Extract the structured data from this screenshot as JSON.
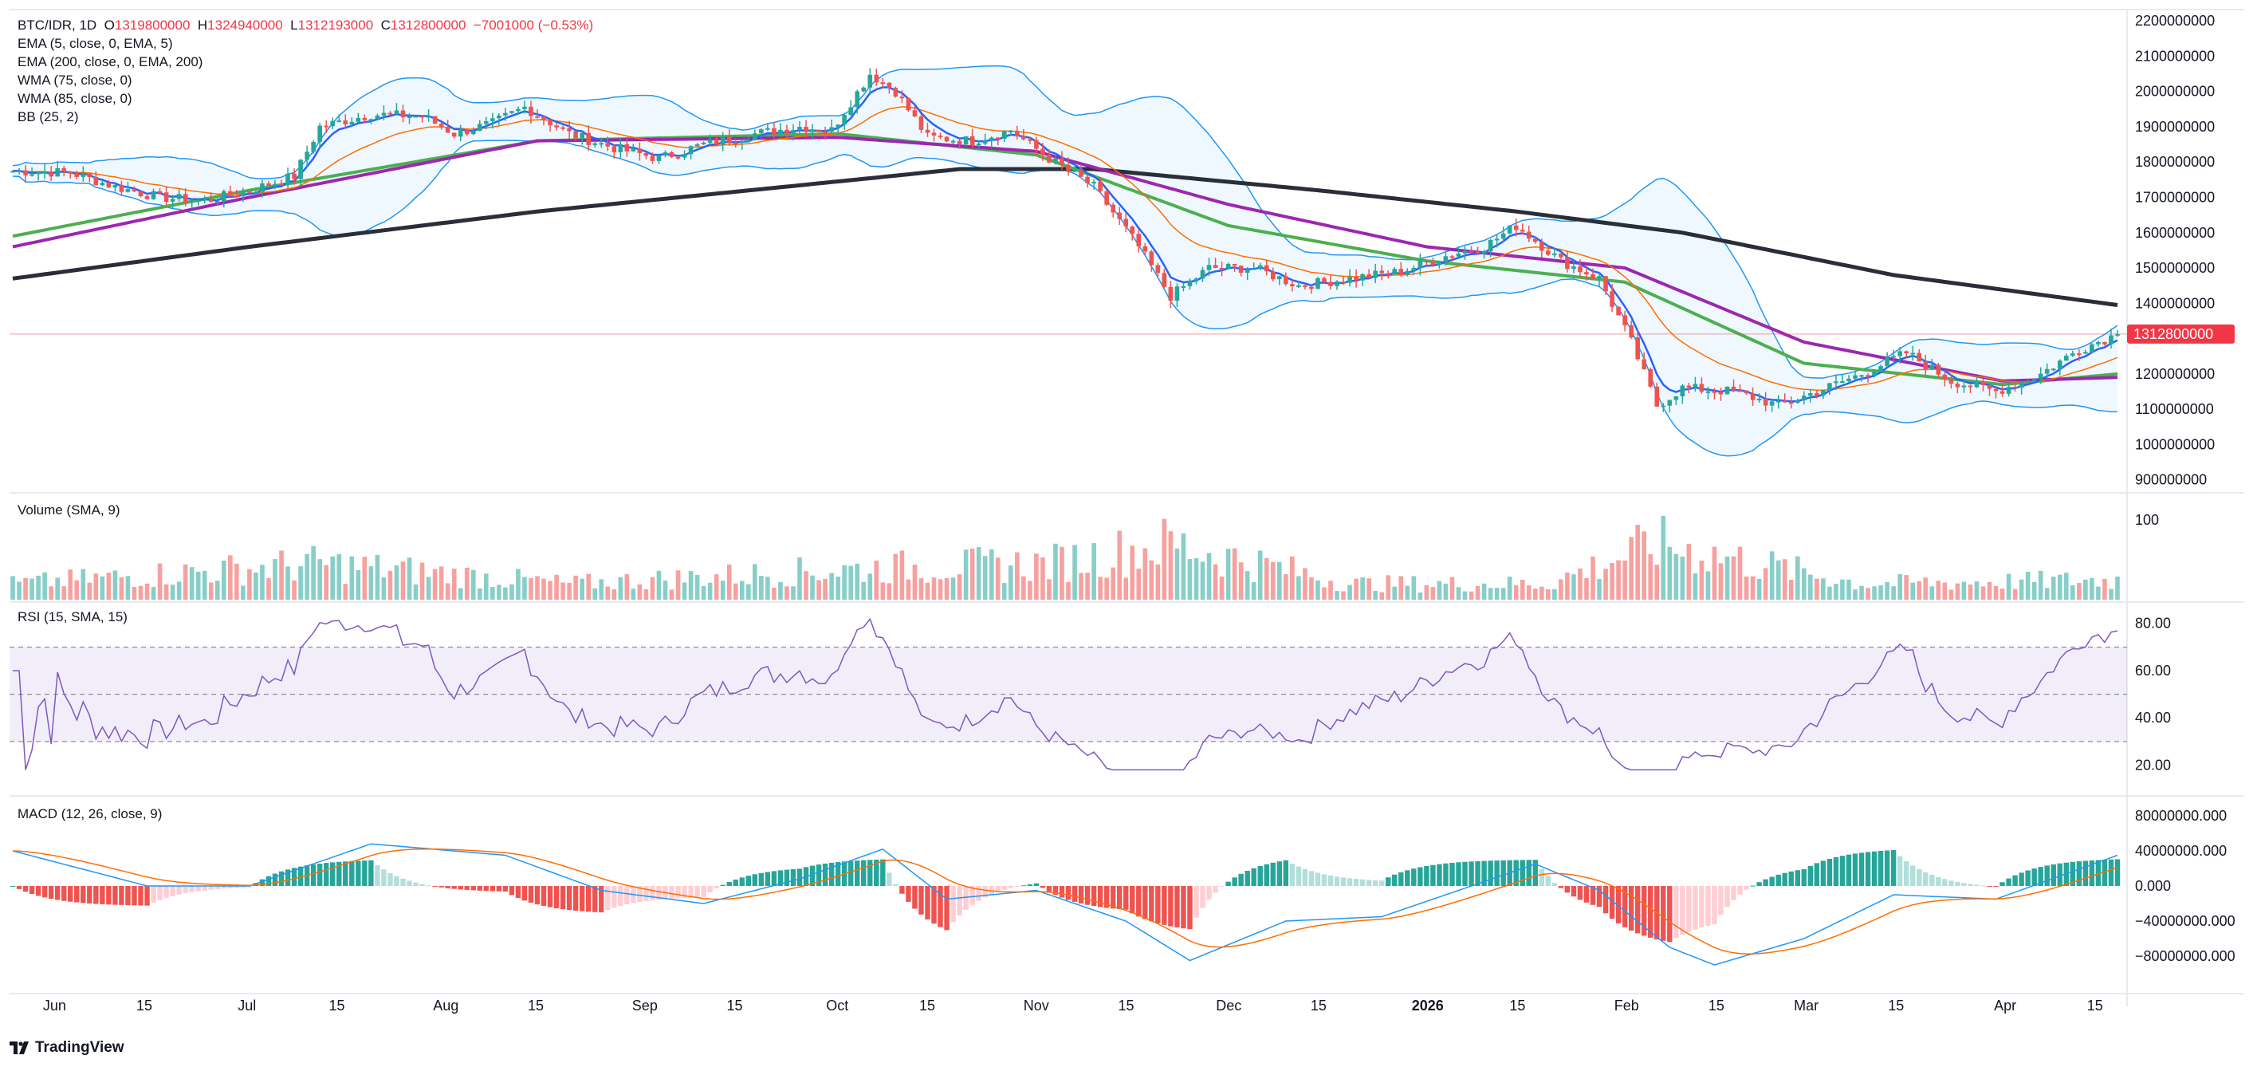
{
  "header": {
    "symbol": "BTC/IDR",
    "interval": "1D",
    "open_label": "O",
    "open": "1319800000",
    "high_label": "H",
    "high": "1324940000",
    "low_label": "L",
    "low": "1312193000",
    "close_label": "C",
    "close": "1312800000",
    "change": "−7001000 (−0.53%)"
  },
  "indicators": [
    "EMA (5, close, 0, EMA, 5)",
    "EMA (200, close, 0, EMA, 200)",
    "WMA (75, close, 0)",
    "WMA (85, close, 0)",
    "BB (25, 2)"
  ],
  "panes": {
    "volume_title": "Volume (SMA, 9)",
    "rsi_title": "RSI (15, SMA, 15)",
    "macd_title": "MACD (12, 26, close, 9)"
  },
  "price_axis": [
    "2200000000",
    "2100000000",
    "2000000000",
    "1900000000",
    "1800000000",
    "1700000000",
    "1600000000",
    "1500000000",
    "1400000000",
    "1200000000",
    "1100000000",
    "1000000000",
    "900000000"
  ],
  "last_price_tag": "1312800000",
  "volume_axis": [
    "100"
  ],
  "rsi_axis": [
    "80.00",
    "60.00",
    "40.00",
    "20.00"
  ],
  "macd_axis": [
    "80000000.000",
    "40000000.000",
    "0.000",
    "−40000000.000",
    "−80000000.000"
  ],
  "time_axis": [
    "Jun",
    "15",
    "Jul",
    "15",
    "Aug",
    "15",
    "Sep",
    "15",
    "Oct",
    "15",
    "Nov",
    "15",
    "Dec",
    "15",
    "2026",
    "15",
    "Feb",
    "15",
    "Mar",
    "15",
    "Apr",
    "15"
  ],
  "brand": "TradingView",
  "colors": {
    "up": "#26a69a",
    "down": "#ef5350",
    "ema5": "#2962ff",
    "ema200": "#2a2e39",
    "wma75": "#4caf50",
    "wma85": "#9c27b0",
    "bb": "#2196f3",
    "rsi": "#7e57c2",
    "macd": "#2196f3",
    "signal": "#ff6d00",
    "last_price": "#f23645"
  },
  "chart_data": {
    "type": "candlestick",
    "x_range": [
      "2025-05-25",
      "2026-04-19"
    ],
    "price_keypoints": [
      [
        "2025-05-25",
        1775
      ],
      [
        "2025-06-03",
        1770
      ],
      [
        "2025-06-10",
        1730
      ],
      [
        "2025-06-17",
        1700
      ],
      [
        "2025-06-24",
        1690
      ],
      [
        "2025-07-01",
        1720
      ],
      [
        "2025-07-08",
        1760
      ],
      [
        "2025-07-12",
        1900
      ],
      [
        "2025-07-20",
        1935
      ],
      [
        "2025-07-28",
        1930
      ],
      [
        "2025-08-02",
        1880
      ],
      [
        "2025-08-08",
        1910
      ],
      [
        "2025-08-13",
        1955
      ],
      [
        "2025-08-20",
        1880
      ],
      [
        "2025-08-27",
        1840
      ],
      [
        "2025-09-03",
        1810
      ],
      [
        "2025-09-10",
        1850
      ],
      [
        "2025-09-18",
        1880
      ],
      [
        "2025-09-25",
        1900
      ],
      [
        "2025-09-30",
        1890
      ],
      [
        "2025-10-06",
        2050
      ],
      [
        "2025-10-10",
        2000
      ],
      [
        "2025-10-15",
        1870
      ],
      [
        "2025-10-22",
        1860
      ],
      [
        "2025-10-28",
        1890
      ],
      [
        "2025-11-03",
        1810
      ],
      [
        "2025-11-10",
        1730
      ],
      [
        "2025-11-17",
        1560
      ],
      [
        "2025-11-22",
        1420
      ],
      [
        "2025-11-28",
        1500
      ],
      [
        "2025-12-05",
        1500
      ],
      [
        "2025-12-12",
        1450
      ],
      [
        "2025-12-20",
        1470
      ],
      [
        "2025-12-28",
        1490
      ],
      [
        "2026-01-05",
        1540
      ],
      [
        "2026-01-10",
        1560
      ],
      [
        "2026-01-15",
        1620
      ],
      [
        "2026-01-22",
        1520
      ],
      [
        "2026-01-28",
        1470
      ],
      [
        "2026-02-02",
        1290
      ],
      [
        "2026-02-06",
        1110
      ],
      [
        "2026-02-10",
        1160
      ],
      [
        "2026-02-18",
        1150
      ],
      [
        "2026-02-25",
        1110
      ],
      [
        "2026-03-03",
        1150
      ],
      [
        "2026-03-10",
        1200
      ],
      [
        "2026-03-17",
        1260
      ],
      [
        "2026-03-24",
        1180
      ],
      [
        "2026-03-31",
        1150
      ],
      [
        "2026-04-07",
        1200
      ],
      [
        "2026-04-13",
        1270
      ],
      [
        "2026-04-19",
        1312.8
      ]
    ],
    "price_unit": "millions IDR",
    "ema200_keypoints": [
      [
        "2025-05-25",
        1470
      ],
      [
        "2025-07-01",
        1560
      ],
      [
        "2025-08-15",
        1660
      ],
      [
        "2025-10-01",
        1745
      ],
      [
        "2025-10-20",
        1780
      ],
      [
        "2025-11-10",
        1780
      ],
      [
        "2025-12-15",
        1720
      ],
      [
        "2026-01-15",
        1660
      ],
      [
        "2026-02-10",
        1600
      ],
      [
        "2026-03-15",
        1480
      ],
      [
        "2026-04-19",
        1395
      ]
    ],
    "wma75_keypoints": [
      [
        "2025-05-25",
        1590
      ],
      [
        "2025-07-01",
        1720
      ],
      [
        "2025-08-15",
        1860
      ],
      [
        "2025-10-01",
        1880
      ],
      [
        "2025-11-01",
        1820
      ],
      [
        "2025-12-01",
        1620
      ],
      [
        "2026-01-01",
        1520
      ],
      [
        "2026-02-01",
        1460
      ],
      [
        "2026-03-01",
        1230
      ],
      [
        "2026-04-01",
        1170
      ],
      [
        "2026-04-19",
        1200
      ]
    ],
    "wma85_keypoints": [
      [
        "2025-05-25",
        1560
      ],
      [
        "2025-07-01",
        1700
      ],
      [
        "2025-08-15",
        1860
      ],
      [
        "2025-10-01",
        1870
      ],
      [
        "2025-11-01",
        1830
      ],
      [
        "2025-12-01",
        1680
      ],
      [
        "2026-01-01",
        1560
      ],
      [
        "2026-02-01",
        1500
      ],
      [
        "2026-03-01",
        1290
      ],
      [
        "2026-04-01",
        1180
      ],
      [
        "2026-04-19",
        1190
      ]
    ],
    "volume_keypoints": [
      [
        "2025-05-25",
        20
      ],
      [
        "2025-07-12",
        45
      ],
      [
        "2025-08-20",
        20
      ],
      [
        "2025-10-08",
        40
      ],
      [
        "2025-11-03",
        45
      ],
      [
        "2025-11-22",
        70
      ],
      [
        "2025-12-20",
        20
      ],
      [
        "2026-01-20",
        20
      ],
      [
        "2026-02-06",
        70
      ],
      [
        "2026-03-10",
        20
      ],
      [
        "2026-04-19",
        25
      ]
    ],
    "rsi_range": [
      20,
      80
    ],
    "rsi_levels": [
      30,
      50,
      70
    ],
    "macd_keypoints": [
      [
        "2025-05-25",
        40
      ],
      [
        "2025-06-15",
        0
      ],
      [
        "2025-07-01",
        0
      ],
      [
        "2025-07-20",
        48
      ],
      [
        "2025-08-10",
        35
      ],
      [
        "2025-08-25",
        -5
      ],
      [
        "2025-09-10",
        -20
      ],
      [
        "2025-09-25",
        8
      ],
      [
        "2025-10-08",
        42
      ],
      [
        "2025-10-18",
        -15
      ],
      [
        "2025-11-01",
        -5
      ],
      [
        "2025-11-15",
        -40
      ],
      [
        "2025-11-25",
        -85
      ],
      [
        "2025-12-10",
        -40
      ],
      [
        "2025-12-25",
        -35
      ],
      [
        "2026-01-10",
        5
      ],
      [
        "2026-01-18",
        25
      ],
      [
        "2026-01-28",
        -5
      ],
      [
        "2026-02-08",
        -70
      ],
      [
        "2026-02-15",
        -90
      ],
      [
        "2026-03-01",
        -60
      ],
      [
        "2026-03-15",
        -10
      ],
      [
        "2026-03-31",
        -15
      ],
      [
        "2026-04-19",
        35
      ]
    ],
    "macd_unit": "millions"
  }
}
